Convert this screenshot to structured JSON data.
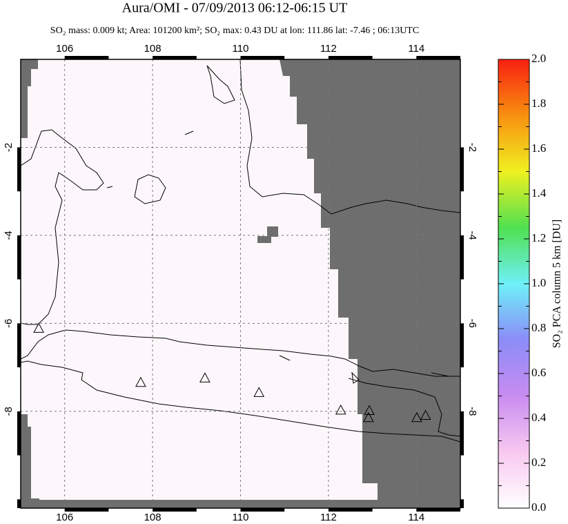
{
  "chart_data": {
    "type": "map",
    "title": "Aura/OMI - 07/09/2013 06:12-06:15 UT",
    "subtitle": "SO₂ mass: 0.009 kt; Area: 101200 km²; SO₂ max: 0.43 DU at lon: 111.86 lat: -7.46 ; 06:13UTC",
    "xlim": [
      105,
      115
    ],
    "ylim": [
      -10.2,
      0
    ],
    "xticks": [
      106,
      108,
      110,
      112,
      114
    ],
    "yticks": [
      -2,
      -4,
      -6,
      -8
    ],
    "grid": true,
    "volcanoes": {
      "lon": [
        105.41,
        107.73,
        109.19,
        110.42,
        112.28,
        112.93,
        112.91,
        114.01,
        114.21
      ],
      "lat": [
        -6.11,
        -7.34,
        -7.24,
        -7.57,
        -7.97,
        -7.98,
        -8.14,
        -8.14,
        -8.09
      ]
    },
    "colorbar": {
      "label": "SO₂ PCA column 5 km [DU]",
      "lim": [
        0,
        2
      ],
      "colors": [
        "#ffffff",
        "#f8c8f0",
        "#c88cf0",
        "#8c8cf8",
        "#6ef0f8",
        "#50e050",
        "#f0f020",
        "#f89010",
        "#f82010"
      ],
      "ticks": [
        {
          "value": 0,
          "label": "0.0"
        },
        {
          "value": 0.2,
          "label": "0.2"
        },
        {
          "value": 0.4,
          "label": "0.4"
        },
        {
          "value": 0.6,
          "label": "0.6"
        },
        {
          "value": 0.8,
          "label": "0.8"
        },
        {
          "value": 1,
          "label": "1.0"
        },
        {
          "value": 1.2,
          "label": "1.2"
        },
        {
          "value": 1.4,
          "label": "1.4"
        },
        {
          "value": 1.6,
          "label": "1.6"
        },
        {
          "value": 1.8,
          "label": "1.8"
        },
        {
          "value": 2,
          "label": "2.0"
        }
      ]
    }
  }
}
